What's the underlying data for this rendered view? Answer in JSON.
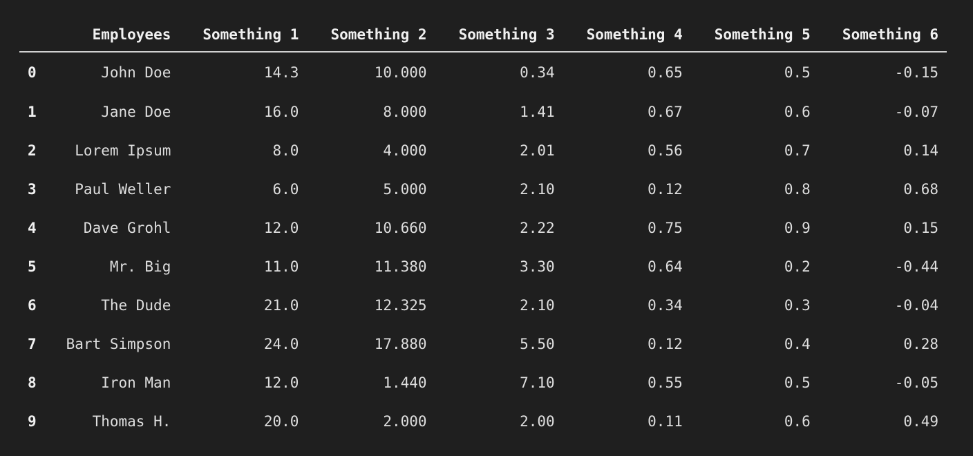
{
  "table": {
    "columns": [
      "",
      "Employees",
      "Something 1",
      "Something 2",
      "Something 3",
      "Something 4",
      "Something 5",
      "Something 6"
    ],
    "rows": [
      [
        "0",
        "John Doe",
        "14.3",
        "10.000",
        "0.34",
        "0.65",
        "0.5",
        "-0.15"
      ],
      [
        "1",
        "Jane Doe",
        "16.0",
        "8.000",
        "1.41",
        "0.67",
        "0.6",
        "-0.07"
      ],
      [
        "2",
        "Lorem Ipsum",
        "8.0",
        "4.000",
        "2.01",
        "0.56",
        "0.7",
        "0.14"
      ],
      [
        "3",
        "Paul Weller",
        "6.0",
        "5.000",
        "2.10",
        "0.12",
        "0.8",
        "0.68"
      ],
      [
        "4",
        "Dave Grohl",
        "12.0",
        "10.660",
        "2.22",
        "0.75",
        "0.9",
        "0.15"
      ],
      [
        "5",
        "Mr. Big",
        "11.0",
        "11.380",
        "3.30",
        "0.64",
        "0.2",
        "-0.44"
      ],
      [
        "6",
        "The Dude",
        "21.0",
        "12.325",
        "2.10",
        "0.34",
        "0.3",
        "-0.04"
      ],
      [
        "7",
        "Bart Simpson",
        "24.0",
        "17.880",
        "5.50",
        "0.12",
        "0.4",
        "0.28"
      ],
      [
        "8",
        "Iron Man",
        "12.0",
        "1.440",
        "7.10",
        "0.55",
        "0.5",
        "-0.05"
      ],
      [
        "9",
        "Thomas H.",
        "20.0",
        "2.000",
        "2.00",
        "0.11",
        "0.6",
        "0.49"
      ]
    ]
  }
}
